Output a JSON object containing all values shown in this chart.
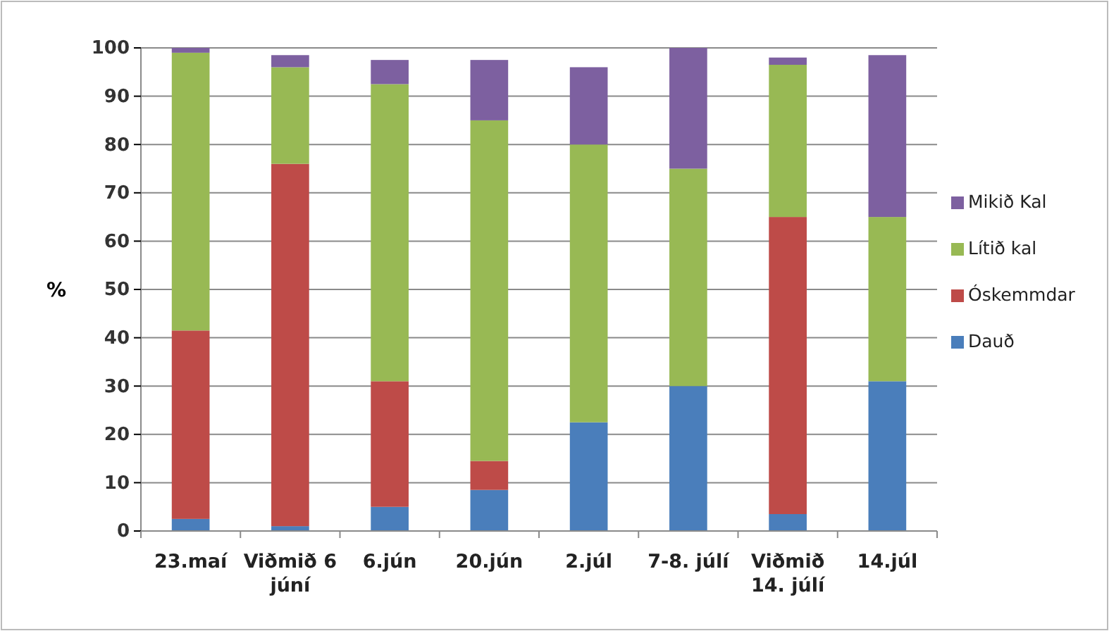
{
  "chart_data": {
    "type": "bar",
    "stacked": true,
    "ylabel": "%",
    "categories": [
      "23.maí",
      "Viðmið 6 júní",
      "6.jún",
      "20.jún",
      "2.júl",
      "7-8. júlí",
      "Viðmið 14. júlí",
      "14.júl"
    ],
    "series": [
      {
        "name": "Dauð",
        "color": "#4a7ebb",
        "values": [
          2.5,
          1,
          5,
          8.5,
          22.5,
          30,
          3.5,
          31
        ]
      },
      {
        "name": "Óskemmdar",
        "color": "#be4b48",
        "values": [
          39,
          75,
          26,
          6,
          0,
          0,
          61.5,
          0
        ]
      },
      {
        "name": "Lítið kal",
        "color": "#98b954",
        "values": [
          57.5,
          20,
          61.5,
          70.5,
          57.5,
          45,
          31.5,
          34
        ]
      },
      {
        "name": "Mikið Kal",
        "color": "#7d60a0",
        "values": [
          1,
          2.5,
          5,
          12.5,
          16,
          25,
          1.5,
          33.5
        ]
      }
    ],
    "ylim": [
      0,
      100
    ],
    "yticks": [
      0,
      10,
      20,
      30,
      40,
      50,
      60,
      70,
      80,
      90,
      100
    ],
    "grid": "y",
    "legend": "right"
  }
}
